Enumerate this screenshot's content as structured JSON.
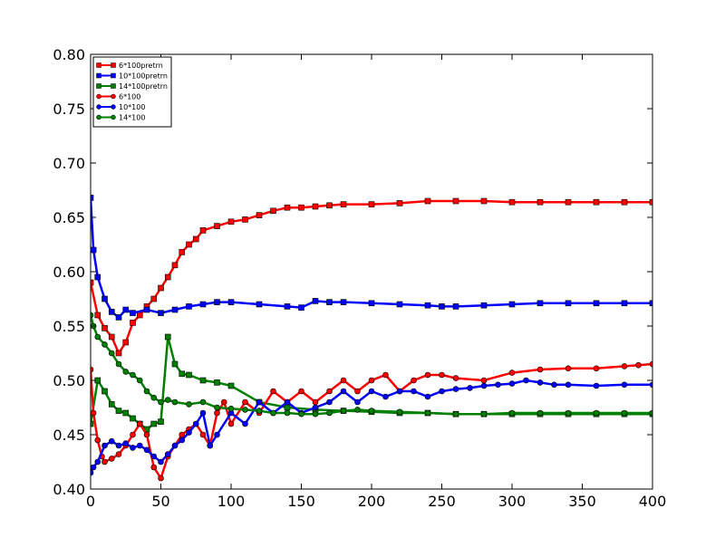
{
  "chart_data": {
    "type": "line",
    "title": "",
    "xlabel": "",
    "ylabel": "",
    "xlim": [
      0,
      400
    ],
    "ylim": [
      0.4,
      0.8
    ],
    "x_ticks": [
      "0",
      "50",
      "100",
      "150",
      "200",
      "250",
      "300",
      "350",
      "400"
    ],
    "y_ticks": [
      "0.40",
      "0.45",
      "0.50",
      "0.55",
      "0.60",
      "0.65",
      "0.70",
      "0.75",
      "0.80"
    ],
    "grid": false,
    "legend_position": "top-left",
    "series": [
      {
        "name": "6*100pretrn",
        "color": "#ff0000",
        "marker": "square",
        "x": [
          0,
          5,
          10,
          15,
          20,
          25,
          30,
          35,
          40,
          45,
          50,
          55,
          60,
          65,
          70,
          75,
          80,
          90,
          100,
          110,
          120,
          130,
          140,
          150,
          160,
          170,
          180,
          200,
          220,
          240,
          260,
          280,
          300,
          320,
          340,
          360,
          380,
          400
        ],
        "y": [
          0.59,
          0.56,
          0.548,
          0.54,
          0.525,
          0.535,
          0.553,
          0.56,
          0.568,
          0.575,
          0.585,
          0.595,
          0.606,
          0.618,
          0.625,
          0.63,
          0.638,
          0.642,
          0.646,
          0.648,
          0.652,
          0.656,
          0.659,
          0.659,
          0.66,
          0.661,
          0.662,
          0.662,
          0.663,
          0.665,
          0.665,
          0.665,
          0.664,
          0.664,
          0.664,
          0.664,
          0.664,
          0.664
        ]
      },
      {
        "name": "10*100pretrn",
        "color": "#0000ff",
        "marker": "square",
        "x": [
          0,
          2,
          5,
          10,
          15,
          20,
          25,
          30,
          40,
          50,
          60,
          70,
          80,
          90,
          100,
          120,
          140,
          150,
          160,
          170,
          180,
          200,
          220,
          240,
          250,
          260,
          280,
          300,
          320,
          340,
          360,
          380,
          400
        ],
        "y": [
          0.668,
          0.62,
          0.595,
          0.575,
          0.563,
          0.558,
          0.565,
          0.562,
          0.565,
          0.562,
          0.565,
          0.568,
          0.57,
          0.572,
          0.572,
          0.57,
          0.568,
          0.567,
          0.573,
          0.572,
          0.572,
          0.571,
          0.57,
          0.569,
          0.568,
          0.568,
          0.569,
          0.57,
          0.571,
          0.571,
          0.571,
          0.571,
          0.571
        ]
      },
      {
        "name": "14*100pretrn",
        "color": "#008000",
        "marker": "square",
        "x": [
          0,
          5,
          10,
          15,
          20,
          25,
          30,
          35,
          40,
          45,
          50,
          55,
          60,
          65,
          70,
          80,
          90,
          100,
          120,
          140,
          160,
          180,
          200,
          220,
          240,
          260,
          280,
          300,
          320,
          340,
          360,
          380,
          400
        ],
        "y": [
          0.46,
          0.5,
          0.49,
          0.478,
          0.472,
          0.47,
          0.465,
          0.46,
          0.455,
          0.46,
          0.462,
          0.54,
          0.515,
          0.506,
          0.505,
          0.5,
          0.498,
          0.495,
          0.48,
          0.475,
          0.473,
          0.472,
          0.471,
          0.47,
          0.47,
          0.469,
          0.469,
          0.469,
          0.469,
          0.469,
          0.469,
          0.469,
          0.469
        ]
      },
      {
        "name": "6*100",
        "color": "#ff0000",
        "marker": "circle",
        "x": [
          0,
          2,
          5,
          8,
          10,
          15,
          20,
          25,
          30,
          35,
          40,
          45,
          50,
          55,
          60,
          65,
          70,
          75,
          80,
          85,
          90,
          95,
          100,
          110,
          120,
          130,
          140,
          150,
          160,
          170,
          180,
          190,
          200,
          210,
          220,
          230,
          240,
          250,
          260,
          280,
          300,
          320,
          340,
          360,
          380,
          390,
          400
        ],
        "y": [
          0.51,
          0.47,
          0.445,
          0.43,
          0.425,
          0.428,
          0.432,
          0.44,
          0.45,
          0.46,
          0.45,
          0.42,
          0.41,
          0.43,
          0.44,
          0.45,
          0.455,
          0.46,
          0.45,
          0.44,
          0.47,
          0.48,
          0.46,
          0.48,
          0.47,
          0.49,
          0.48,
          0.49,
          0.48,
          0.49,
          0.5,
          0.49,
          0.5,
          0.505,
          0.49,
          0.5,
          0.505,
          0.505,
          0.502,
          0.5,
          0.507,
          0.51,
          0.511,
          0.511,
          0.513,
          0.514,
          0.515
        ]
      },
      {
        "name": "10*100",
        "color": "#0000ff",
        "marker": "circle",
        "x": [
          0,
          2,
          5,
          10,
          15,
          20,
          25,
          30,
          35,
          40,
          45,
          50,
          55,
          60,
          65,
          70,
          75,
          80,
          85,
          90,
          100,
          110,
          120,
          130,
          140,
          150,
          160,
          170,
          180,
          190,
          200,
          210,
          220,
          230,
          240,
          250,
          260,
          270,
          280,
          290,
          300,
          310,
          320,
          330,
          340,
          360,
          380,
          400
        ],
        "y": [
          0.415,
          0.42,
          0.425,
          0.44,
          0.444,
          0.44,
          0.442,
          0.438,
          0.44,
          0.436,
          0.43,
          0.425,
          0.432,
          0.44,
          0.445,
          0.452,
          0.46,
          0.47,
          0.44,
          0.45,
          0.47,
          0.46,
          0.48,
          0.47,
          0.48,
          0.47,
          0.475,
          0.48,
          0.49,
          0.48,
          0.49,
          0.485,
          0.49,
          0.49,
          0.485,
          0.49,
          0.492,
          0.493,
          0.495,
          0.496,
          0.497,
          0.5,
          0.498,
          0.496,
          0.496,
          0.495,
          0.496,
          0.496
        ]
      },
      {
        "name": "14*100",
        "color": "#008000",
        "marker": "circle",
        "x": [
          0,
          2,
          5,
          10,
          15,
          20,
          25,
          30,
          35,
          40,
          45,
          50,
          55,
          60,
          70,
          80,
          90,
          100,
          110,
          120,
          130,
          140,
          150,
          160,
          170,
          180,
          190,
          200,
          220,
          240,
          260,
          280,
          300,
          320,
          340,
          360,
          380,
          400
        ],
        "y": [
          0.56,
          0.55,
          0.54,
          0.533,
          0.525,
          0.515,
          0.508,
          0.505,
          0.5,
          0.49,
          0.484,
          0.48,
          0.482,
          0.48,
          0.478,
          0.48,
          0.475,
          0.474,
          0.473,
          0.472,
          0.47,
          0.47,
          0.469,
          0.469,
          0.47,
          0.472,
          0.473,
          0.472,
          0.471,
          0.47,
          0.469,
          0.469,
          0.47,
          0.47,
          0.47,
          0.47,
          0.47,
          0.47
        ]
      }
    ]
  }
}
